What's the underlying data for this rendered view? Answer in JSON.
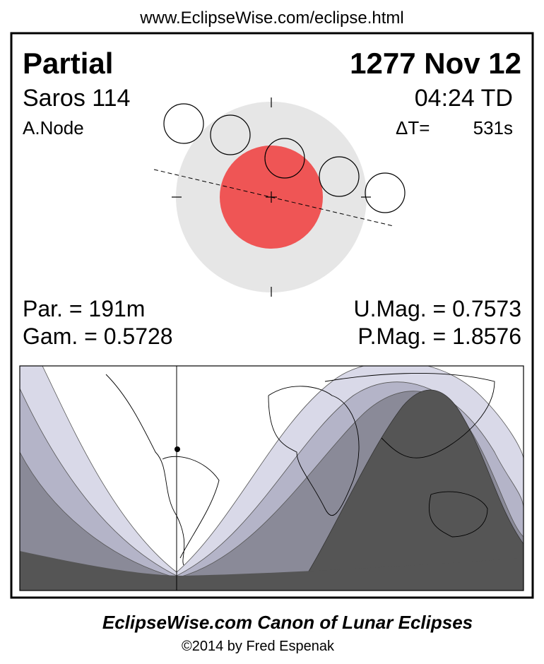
{
  "header": {
    "url": "www.EclipseWise.com/eclipse.html"
  },
  "panel": {
    "eclipse_type": "Partial",
    "date": "1277 Nov 12",
    "saros": "Saros 114",
    "time": "04:24 TD",
    "node": "A.Node",
    "delta_t_label": "ΔT=",
    "delta_t_value": "531s"
  },
  "parameters": {
    "duration": "Par. = 191m",
    "gamma": "Gam. = 0.5728",
    "umbral_mag": "U.Mag. = 0.7573",
    "penumbral_mag": "P.Mag. = 1.8576"
  },
  "footer": {
    "title": "EclipseWise.com Canon of Lunar Eclipses",
    "copyright": "©2014 by Fred Espenak"
  }
}
